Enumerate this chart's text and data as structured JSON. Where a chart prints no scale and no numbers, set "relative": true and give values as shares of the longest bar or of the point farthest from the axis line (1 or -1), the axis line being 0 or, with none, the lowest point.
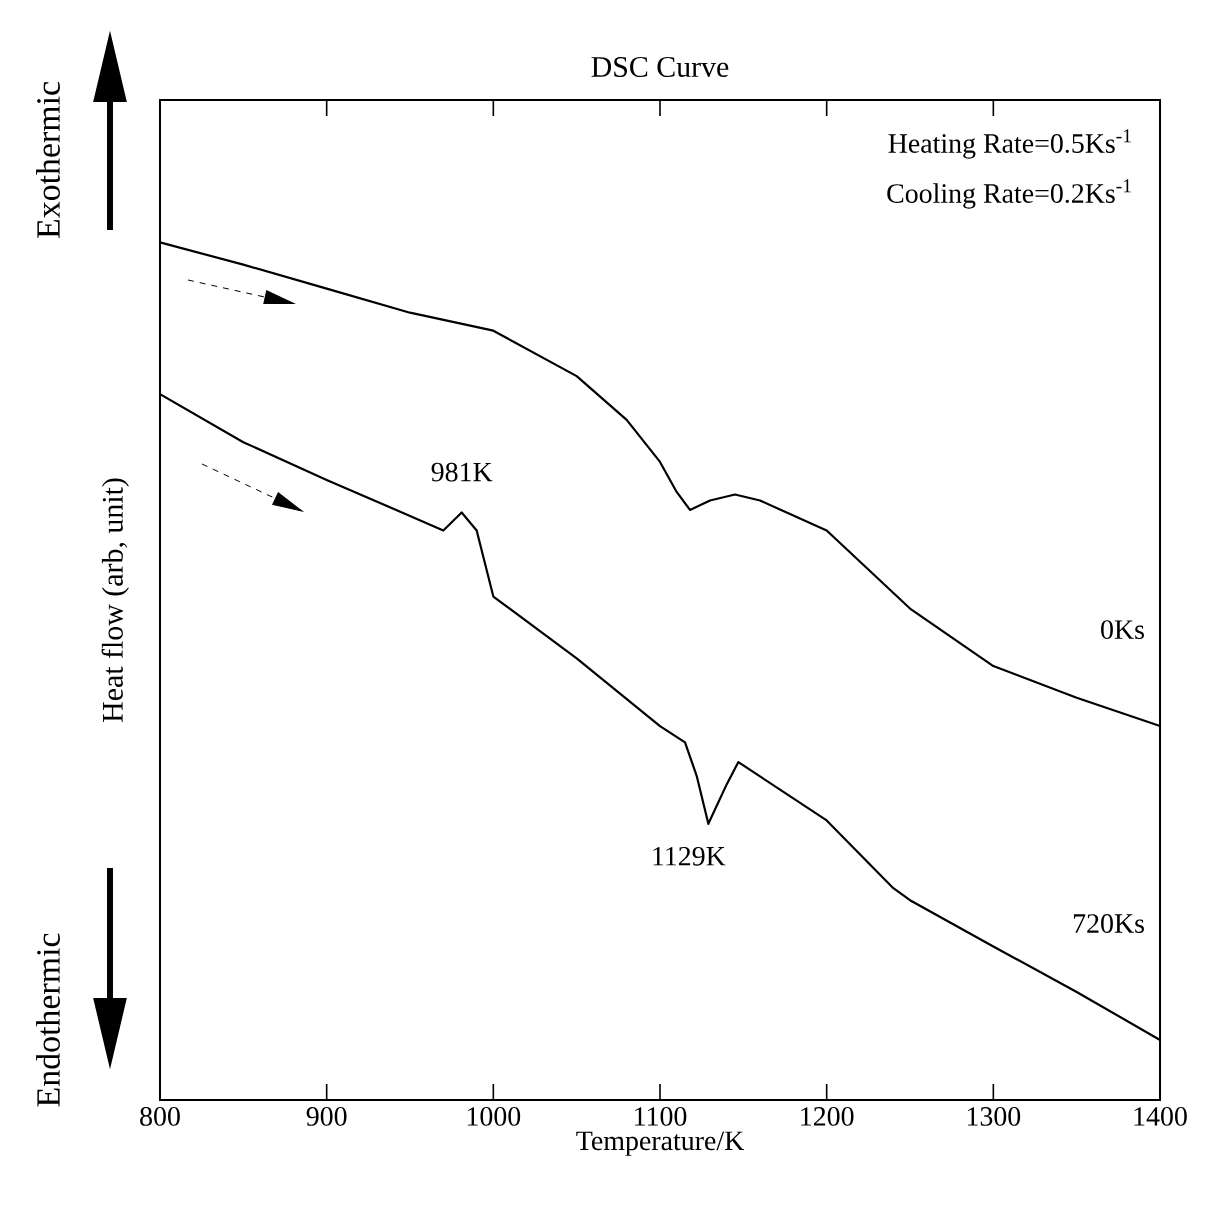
{
  "chart_data": {
    "type": "line",
    "title": "DSC Curve",
    "xlabel": "Temperature/K",
    "ylabel": "Heat flow (arb, unit)",
    "relative": true,
    "xlim": [
      800,
      1400
    ],
    "xticks": [
      800,
      900,
      1000,
      1100,
      1200,
      1300,
      1400
    ],
    "series": [
      {
        "name": "0Ks",
        "color": "#000000",
        "x": [
          800,
          850,
          900,
          950,
          1000,
          1050,
          1080,
          1100,
          1110,
          1118,
          1130,
          1145,
          1160,
          1200,
          1250,
          1300,
          1350,
          1400
        ],
        "values": [
          1.0,
          0.974,
          0.946,
          0.918,
          0.897,
          0.844,
          0.793,
          0.744,
          0.709,
          0.688,
          0.699,
          0.706,
          0.699,
          0.664,
          0.573,
          0.506,
          0.469,
          0.436
        ]
      },
      {
        "name": "720Ks",
        "color": "#000000",
        "x": [
          800,
          850,
          900,
          950,
          970,
          981,
          990,
          1000,
          1050,
          1100,
          1115,
          1122,
          1129,
          1140,
          1147,
          1200,
          1240,
          1250,
          1300,
          1350,
          1400
        ],
        "values": [
          0.823,
          0.767,
          0.723,
          0.681,
          0.664,
          0.685,
          0.664,
          0.587,
          0.515,
          0.436,
          0.417,
          0.378,
          0.322,
          0.368,
          0.394,
          0.326,
          0.247,
          0.233,
          0.179,
          0.126,
          0.07
        ]
      }
    ],
    "annotations": [
      {
        "text": "981K",
        "x": 981,
        "y": 0.685
      },
      {
        "text": "1129K",
        "x": 1129,
        "y": 0.322
      },
      "Heating Rate=0.5Ks$^{-1}$",
      "Cooling Rate=0.2Ks$^{-1}$",
      "Exothermic",
      "Endothermic"
    ]
  }
}
